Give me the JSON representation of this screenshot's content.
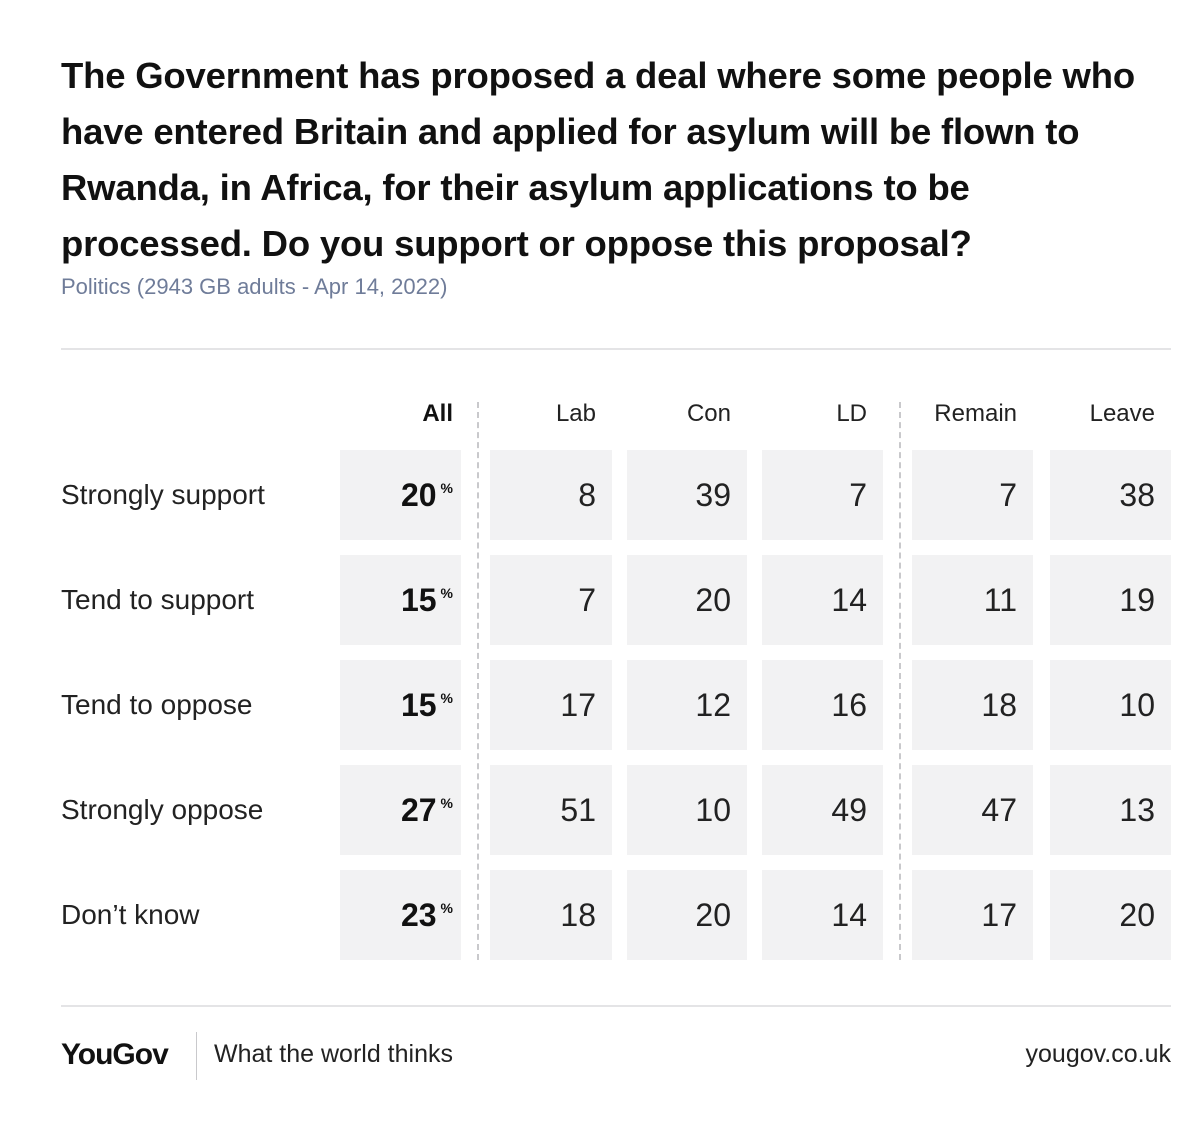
{
  "title": "The Government has proposed a deal where some people who have entered Britain and applied for asylum will be flown to Rwanda, in Africa, for their asylum applications to be processed. Do you support or oppose this proposal?",
  "subtitle": "Politics (2943 GB adults - Apr 14, 2022)",
  "footer": {
    "logo": "YouGov",
    "tagline": "What the world thinks",
    "url": "yougov.co.uk"
  },
  "chart_data": {
    "type": "table",
    "title": "The Government has proposed a deal where some people who have entered Britain and applied for asylum will be flown to Rwanda, in Africa, for their asylum applications to be processed. Do you support or oppose this proposal?",
    "columns": [
      "All",
      "Lab",
      "Con",
      "LD",
      "Remain",
      "Leave"
    ],
    "unit_symbol": "%",
    "rows": [
      {
        "label": "Strongly support",
        "values": [
          20,
          8,
          39,
          7,
          7,
          38
        ]
      },
      {
        "label": "Tend to support",
        "values": [
          15,
          7,
          20,
          14,
          11,
          19
        ]
      },
      {
        "label": "Tend to oppose",
        "values": [
          15,
          17,
          12,
          16,
          18,
          10
        ]
      },
      {
        "label": "Strongly oppose",
        "values": [
          27,
          51,
          10,
          49,
          47,
          13
        ]
      },
      {
        "label": "Don’t know",
        "values": [
          23,
          18,
          20,
          14,
          17,
          20
        ]
      }
    ]
  }
}
